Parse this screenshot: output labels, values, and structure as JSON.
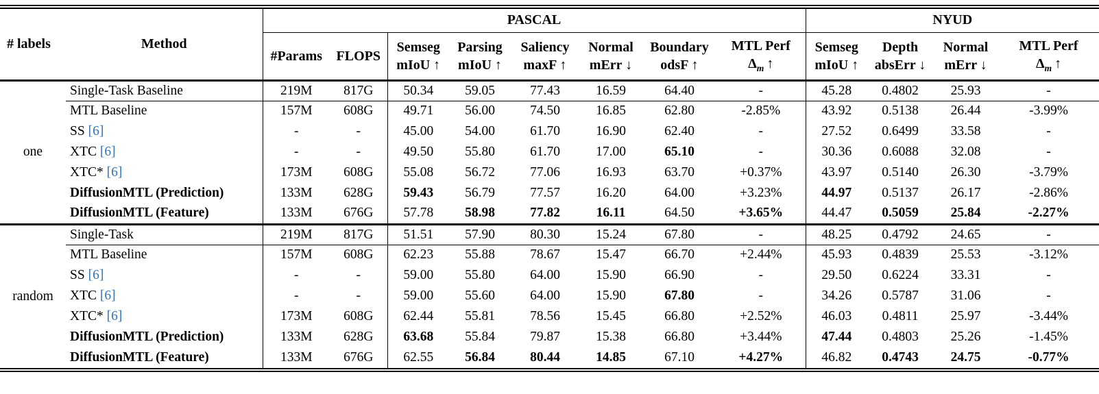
{
  "header": {
    "labels": "# labels",
    "method": "Method",
    "pascal": "PASCAL",
    "nyud": "NYUD",
    "params": "#Params",
    "flops": "FLOPS",
    "pascal_metrics": [
      {
        "name": "Semseg",
        "measure": "mIoU ↑"
      },
      {
        "name": "Parsing",
        "measure": "mIoU ↑"
      },
      {
        "name": "Saliency",
        "measure": "maxF ↑"
      },
      {
        "name": "Normal",
        "measure": "mErr ↓"
      },
      {
        "name": "Boundary",
        "measure": "odsF ↑"
      },
      {
        "name": "MTL Perf",
        "sym": "Δ",
        "sub": "m",
        "arrow": "↑"
      }
    ],
    "nyud_metrics": [
      {
        "name": "Semseg",
        "measure": "mIoU ↑"
      },
      {
        "name": "Depth",
        "measure": "absErr ↓"
      },
      {
        "name": "Normal",
        "measure": "mErr ↓"
      },
      {
        "name": "MTL Perf",
        "sym": "Δ",
        "sub": "m",
        "arrow": "↑"
      }
    ]
  },
  "colors": {
    "citation": "#3274B5"
  },
  "groups": [
    {
      "label": "one",
      "rows": [
        {
          "method": "Single-Task Baseline",
          "method_bold": false,
          "cite": "",
          "values": [
            "219M",
            "817G",
            "50.34",
            "59.05",
            "77.43",
            "16.59",
            "64.40",
            "-",
            "45.28",
            "0.4802",
            "25.93",
            "-"
          ],
          "bold": []
        },
        {
          "method": "MTL Baseline",
          "method_bold": false,
          "cite": "",
          "values": [
            "157M",
            "608G",
            "49.71",
            "56.00",
            "74.50",
            "16.85",
            "62.80",
            "-2.85%",
            "43.92",
            "0.5138",
            "26.44",
            "-3.99%"
          ],
          "bold": []
        },
        {
          "method": "SS",
          "method_bold": false,
          "cite": "[6]",
          "values": [
            "-",
            "-",
            "45.00",
            "54.00",
            "61.70",
            "16.90",
            "62.40",
            "-",
            "27.52",
            "0.6499",
            "33.58",
            "-"
          ],
          "bold": []
        },
        {
          "method": "XTC",
          "method_bold": false,
          "cite": "[6]",
          "values": [
            "-",
            "-",
            "49.50",
            "55.80",
            "61.70",
            "17.00",
            "65.10",
            "-",
            "30.36",
            "0.6088",
            "32.08",
            "-"
          ],
          "bold": [
            6
          ]
        },
        {
          "method": "XTC*",
          "method_bold": false,
          "cite": "[6]",
          "values": [
            "173M",
            "608G",
            "55.08",
            "56.72",
            "77.06",
            "16.93",
            "63.70",
            "+0.37%",
            "43.97",
            "0.5140",
            "26.30",
            "-3.79%"
          ],
          "bold": []
        },
        {
          "method": "DiffusionMTL (Prediction)",
          "method_bold": true,
          "cite": "",
          "values": [
            "133M",
            "628G",
            "59.43",
            "56.79",
            "77.57",
            "16.20",
            "64.00",
            "+3.23%",
            "44.97",
            "0.5137",
            "26.17",
            "-2.86%"
          ],
          "bold": [
            2,
            8
          ]
        },
        {
          "method": "DiffusionMTL (Feature)",
          "method_bold": true,
          "cite": "",
          "values": [
            "133M",
            "676G",
            "57.78",
            "58.98",
            "77.82",
            "16.11",
            "64.50",
            "+3.65%",
            "44.47",
            "0.5059",
            "25.84",
            "-2.27%"
          ],
          "bold": [
            3,
            4,
            5,
            7,
            9,
            10,
            11
          ]
        }
      ]
    },
    {
      "label": "random",
      "rows": [
        {
          "method": "Single-Task",
          "method_bold": false,
          "cite": "",
          "values": [
            "219M",
            "817G",
            "51.51",
            "57.90",
            "80.30",
            "15.24",
            "67.80",
            "-",
            "48.25",
            "0.4792",
            "24.65",
            "-"
          ],
          "bold": []
        },
        {
          "method": "MTL Baseline",
          "method_bold": false,
          "cite": "",
          "values": [
            "157M",
            "608G",
            "62.23",
            "55.88",
            "78.67",
            "15.47",
            "66.70",
            "+2.44%",
            "45.93",
            "0.4839",
            "25.53",
            "-3.12%"
          ],
          "bold": []
        },
        {
          "method": "SS",
          "method_bold": false,
          "cite": "[6]",
          "values": [
            "-",
            "-",
            "59.00",
            "55.80",
            "64.00",
            "15.90",
            "66.90",
            "-",
            "29.50",
            "0.6224",
            "33.31",
            "-"
          ],
          "bold": []
        },
        {
          "method": "XTC",
          "method_bold": false,
          "cite": "[6]",
          "values": [
            "-",
            "-",
            "59.00",
            "55.60",
            "64.00",
            "15.90",
            "67.80",
            "-",
            "34.26",
            "0.5787",
            "31.06",
            "-"
          ],
          "bold": [
            6
          ]
        },
        {
          "method": "XTC*",
          "method_bold": false,
          "cite": "[6]",
          "values": [
            "173M",
            "608G",
            "62.44",
            "55.81",
            "78.56",
            "15.45",
            "66.80",
            "+2.52%",
            "46.03",
            "0.4811",
            "25.97",
            "-3.44%"
          ],
          "bold": []
        },
        {
          "method": "DiffusionMTL (Prediction)",
          "method_bold": true,
          "cite": "",
          "values": [
            "133M",
            "628G",
            "63.68",
            "55.84",
            "79.87",
            "15.38",
            "66.80",
            "+3.44%",
            "47.44",
            "0.4803",
            "25.26",
            "-1.45%"
          ],
          "bold": [
            2,
            8
          ]
        },
        {
          "method": "DiffusionMTL (Feature)",
          "method_bold": true,
          "cite": "",
          "values": [
            "133M",
            "676G",
            "62.55",
            "56.84",
            "80.44",
            "14.85",
            "67.10",
            "+4.27%",
            "46.82",
            "0.4743",
            "24.75",
            "-0.77%"
          ],
          "bold": [
            3,
            4,
            5,
            7,
            9,
            10,
            11
          ]
        }
      ]
    }
  ]
}
